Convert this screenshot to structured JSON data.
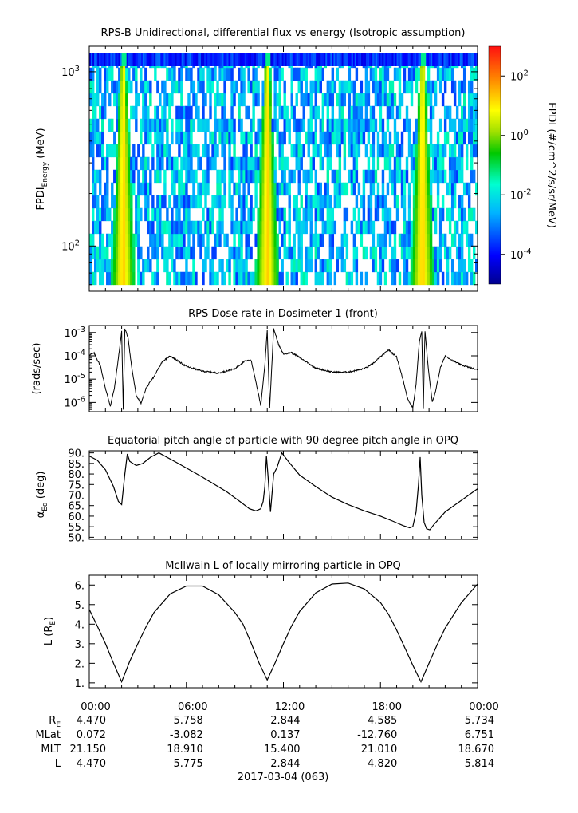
{
  "chart_data": [
    {
      "type": "heatmap",
      "title": "RPS-B  Unidirectional, differential flux vs energy (Isotropic assumption)",
      "ylabel_main": "FPDI",
      "ylabel_sub": "Energy",
      "ylabel_unit": " (MeV)",
      "yscale": "log",
      "ylim": [
        55,
        1400
      ],
      "y_tick_labels": [
        {
          "value": 100,
          "base": "10",
          "exp": "2"
        },
        {
          "value": 1000,
          "base": "10",
          "exp": "3"
        }
      ],
      "colorbar_label": "FPDI (#/cm^2/s/sr/MeV)",
      "colorbar_range": [
        1e-05,
        1000
      ],
      "colorbar_ticks": [
        {
          "value": 100,
          "base": "10",
          "exp": "2"
        },
        {
          "value": 1,
          "base": "10",
          "exp": "0"
        },
        {
          "value": 0.01,
          "base": "10",
          "exp": "-2"
        },
        {
          "value": 0.0001,
          "base": "10",
          "exp": "-4"
        }
      ],
      "flux_peak_times_hours": [
        2.1,
        11.0,
        20.6
      ]
    },
    {
      "type": "line",
      "title": "RPS  Dose rate in Dosimeter 1 (front)",
      "ylabel": "(rads/sec)",
      "yscale": "log",
      "ylim": [
        4e-07,
        0.002
      ],
      "y_tick_labels": [
        {
          "value": 0.001,
          "base": "10",
          "exp": "-3"
        },
        {
          "value": 0.0001,
          "base": "10",
          "exp": "-4"
        },
        {
          "value": 1e-05,
          "base": "10",
          "exp": "-5"
        },
        {
          "value": 1e-06,
          "base": "10",
          "exp": "-6"
        }
      ],
      "x": [
        0,
        0.3,
        0.7,
        1.0,
        1.3,
        1.55,
        1.8,
        2.0,
        2.1,
        2.2,
        2.4,
        2.6,
        2.9,
        3.2,
        3.5,
        4.0,
        4.5,
        5.0,
        6.0,
        7.0,
        8.0,
        9.0,
        9.6,
        10.0,
        10.3,
        10.6,
        10.85,
        11.0,
        11.15,
        11.4,
        11.7,
        12.0,
        12.5,
        13.0,
        14.0,
        15.0,
        16.0,
        17.0,
        17.5,
        18.0,
        18.5,
        19.0,
        19.4,
        19.7,
        20.0,
        20.2,
        20.4,
        20.55,
        20.65,
        20.75,
        20.95,
        21.2,
        21.4,
        21.7,
        22.0,
        22.5,
        23.0,
        24.0
      ],
      "y": [
        0.00011,
        0.00013,
        3.5e-05,
        4e-06,
        7e-07,
        4e-06,
        8e-05,
        0.0011,
        5e-07,
        0.0014,
        0.0006,
        4e-05,
        2e-06,
        9e-07,
        4e-06,
        1.3e-05,
        5.5e-05,
        0.0001,
        3.5e-05,
        2.2e-05,
        1.8e-05,
        2.8e-05,
        6e-05,
        6.5e-05,
        8e-06,
        7e-07,
        4e-05,
        0.0013,
        6e-07,
        0.0015,
        0.0003,
        0.00012,
        0.00014,
        8.5e-05,
        3e-05,
        2e-05,
        2e-05,
        2.8e-05,
        4.5e-05,
        9e-05,
        0.00018,
        9e-05,
        9e-06,
        1.3e-06,
        6e-07,
        6e-06,
        0.0004,
        0.0011,
        5e-07,
        0.0012,
        3e-05,
        1e-06,
        3e-06,
        3e-05,
        0.0001,
        6e-05,
        4e-05,
        2.5e-05
      ]
    },
    {
      "type": "line",
      "title": "Equatorial pitch angle of particle with 90 degree pitch angle in OPQ",
      "ylabel_main": "α",
      "ylabel_sub": "Eq",
      "ylabel_unit": " (deg)",
      "ylim": [
        49,
        91
      ],
      "y_ticks": [
        50,
        55,
        60,
        65,
        70,
        75,
        80,
        85,
        90
      ],
      "y_tick_labels": [
        "50.",
        "55.",
        "60.",
        "65.",
        "70.",
        "75.",
        "80.",
        "85.",
        "90."
      ],
      "x": [
        0,
        0.5,
        1.0,
        1.5,
        1.8,
        2.0,
        2.2,
        2.35,
        2.5,
        2.9,
        3.3,
        3.8,
        4.3,
        5.5,
        7.0,
        8.5,
        9.3,
        9.9,
        10.3,
        10.6,
        10.75,
        10.85,
        10.95,
        11.05,
        11.2,
        11.4,
        11.6,
        11.9,
        12.3,
        13.0,
        14.0,
        15.0,
        16.0,
        17.0,
        18.0,
        18.8,
        19.4,
        19.8,
        20.0,
        20.2,
        20.35,
        20.45,
        20.55,
        20.7,
        20.85,
        21.05,
        21.3,
        22.0,
        23.0,
        24.0
      ],
      "y": [
        88.5,
        86.5,
        82,
        74,
        67,
        65.5,
        80,
        89.5,
        86,
        84,
        85,
        88,
        90,
        85,
        78.5,
        71.5,
        67,
        63.5,
        62.5,
        63.5,
        67,
        74,
        88.5,
        79,
        62,
        80,
        83,
        90,
        86,
        79.5,
        74,
        69,
        65.5,
        62.5,
        60,
        57.5,
        55.5,
        54.5,
        55,
        62,
        75,
        88,
        70,
        57,
        54,
        53.5,
        56,
        62,
        67.5,
        73
      ]
    },
    {
      "type": "line",
      "title": "McIlwain L of locally mirroring particle in OPQ",
      "ylabel_main": "L (R",
      "ylabel_sub": "E",
      "ylabel_unit": ")",
      "ylim": [
        0.75,
        6.5
      ],
      "y_ticks": [
        1,
        2,
        3,
        4,
        5,
        6
      ],
      "y_tick_labels": [
        "1.",
        "2.",
        "3.",
        "4.",
        "5.",
        "6."
      ],
      "x": [
        0,
        0.5,
        1.0,
        1.5,
        2.0,
        2.5,
        3.0,
        3.5,
        4.0,
        5.0,
        6.0,
        7.0,
        8.0,
        9.0,
        9.5,
        10.0,
        10.5,
        11.0,
        11.5,
        12.0,
        12.5,
        13.0,
        14.0,
        15.0,
        16.0,
        17.0,
        18.0,
        18.5,
        19.0,
        19.5,
        20.0,
        20.5,
        21.0,
        21.5,
        22.0,
        23.0,
        24.0
      ],
      "y": [
        4.75,
        3.9,
        3.0,
        2.0,
        1.05,
        2.1,
        3.0,
        3.85,
        4.6,
        5.55,
        5.95,
        5.95,
        5.5,
        4.6,
        4.0,
        3.05,
        2.0,
        1.15,
        2.05,
        3.0,
        3.9,
        4.65,
        5.6,
        6.05,
        6.1,
        5.8,
        5.1,
        4.5,
        3.7,
        2.8,
        1.9,
        1.05,
        2.0,
        2.95,
        3.8,
        5.1,
        6.05
      ]
    }
  ],
  "x_axis": {
    "range_hours": [
      0,
      24
    ],
    "tick_hours": [
      0,
      6,
      12,
      18,
      24
    ],
    "tick_labels": [
      "00:00",
      "06:00",
      "12:00",
      "18:00",
      "00:00"
    ],
    "date_label": "2017-03-04 (063)"
  },
  "ephemeris": {
    "rows": [
      {
        "label_main": "R",
        "label_sub": "E",
        "values": [
          "4.470",
          "5.758",
          "2.844",
          "4.585",
          "5.734"
        ]
      },
      {
        "label_main": "MLat",
        "label_sub": "",
        "values": [
          "0.072",
          "-3.082",
          "0.137",
          "-12.760",
          "6.751"
        ]
      },
      {
        "label_main": "MLT",
        "label_sub": "",
        "values": [
          "21.150",
          "18.910",
          "15.400",
          "21.010",
          "18.670"
        ]
      },
      {
        "label_main": "L",
        "label_sub": "",
        "values": [
          "4.470",
          "5.775",
          "2.844",
          "4.820",
          "5.814"
        ]
      }
    ]
  }
}
